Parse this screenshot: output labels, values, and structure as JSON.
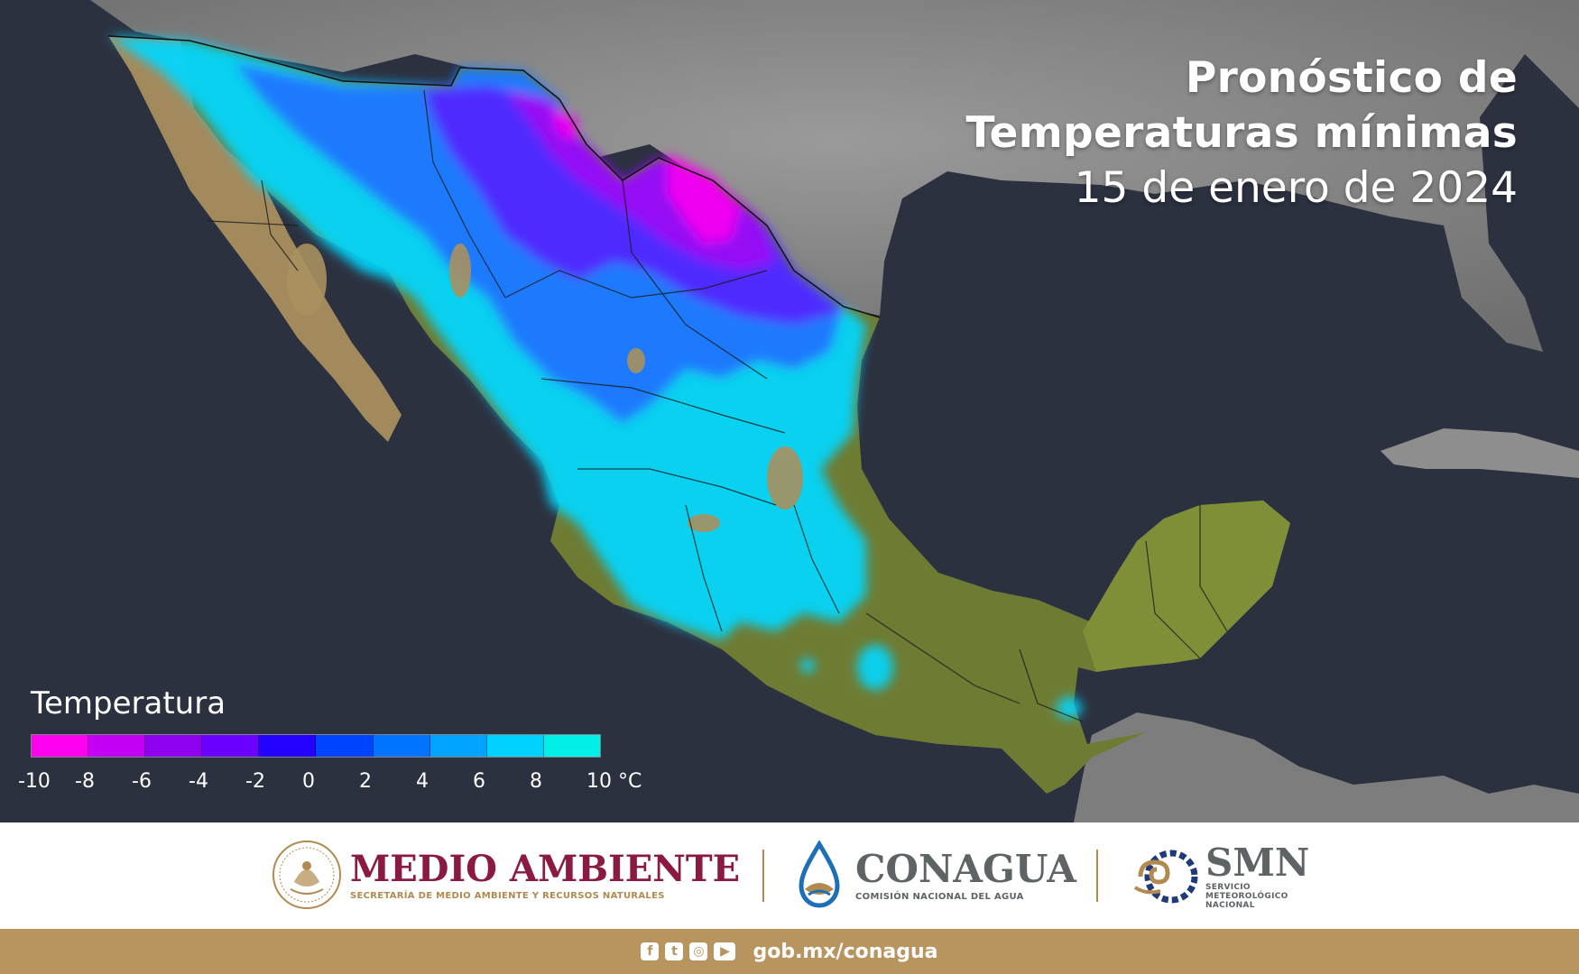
{
  "title": {
    "line1": "Pronóstico de",
    "line2": "Temperaturas mínimas",
    "date": "15 de enero de 2024"
  },
  "legend": {
    "title": "Temperatura",
    "colors": [
      "#ff00f0",
      "#c300f5",
      "#8e00f0",
      "#6a00ff",
      "#2400ff",
      "#0044ff",
      "#0073ff",
      "#00a4ff",
      "#00d2ff",
      "#00f0e8"
    ],
    "ticks": [
      "-10",
      "-8",
      "-6",
      "-4",
      "-2",
      "0",
      "2",
      "4",
      "6",
      "8",
      "10 °C"
    ]
  },
  "footer": {
    "semarnat": {
      "name": "MEDIO AMBIENTE",
      "subtitle": "SECRETARÍA DE MEDIO AMBIENTE Y RECURSOS NATURALES",
      "color": "#8b1a3f"
    },
    "conagua": {
      "name": "CONAGUA",
      "subtitle": "COMISIÓN NACIONAL DEL AGUA",
      "color": "#5e6366"
    },
    "smn": {
      "name": "SMN",
      "subtitle_lines": [
        "SERVICIO",
        "METEOROLÓGICO",
        "NACIONAL"
      ],
      "color": "#5e6366"
    },
    "accent": "#b08a4e"
  },
  "bottom_bar": {
    "social_icons": [
      "facebook-icon",
      "twitter-icon",
      "instagram-icon",
      "youtube-icon"
    ],
    "site": "gob.mx/conagua",
    "color": "#b8955f"
  }
}
